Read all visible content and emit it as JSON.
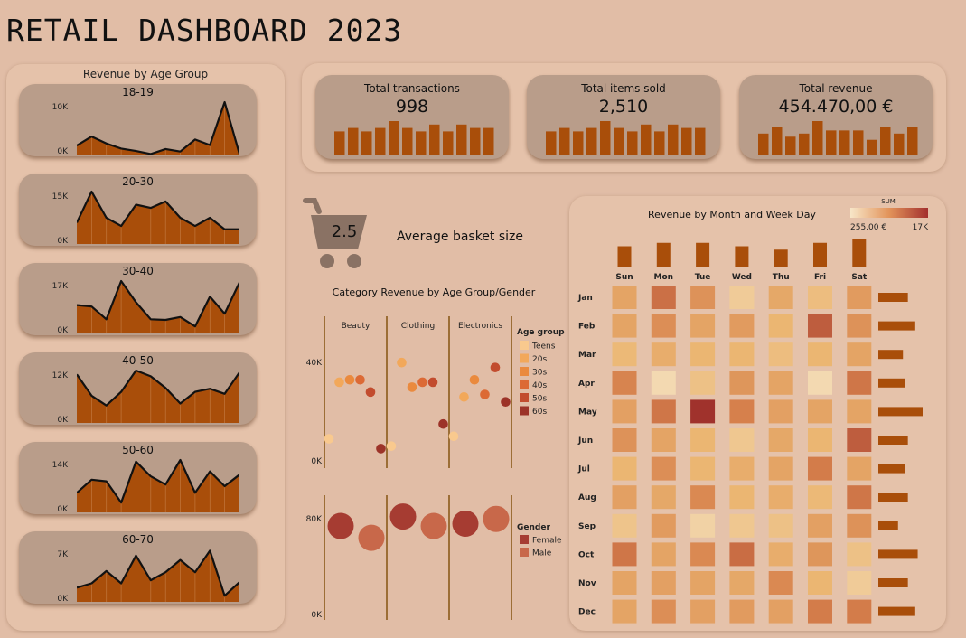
{
  "title": "RETAIL DASHBOARD 2023",
  "age_panel": {
    "title": "Revenue by Age Group",
    "groups": [
      {
        "label": "18-19",
        "ytop": "10K",
        "ybot": "0K",
        "max": 10.5,
        "values": [
          1.8,
          3.6,
          2.2,
          1.2,
          0.7,
          0.1,
          1.1,
          0.6,
          3.0,
          1.9,
          10.5,
          0.1
        ]
      },
      {
        "label": "20-30",
        "ytop": "15K",
        "ybot": "0K",
        "max": 16,
        "values": [
          6.5,
          16.0,
          8.0,
          5.5,
          12.0,
          11.0,
          13.0,
          8.0,
          5.5,
          8.0,
          4.5,
          4.5
        ]
      },
      {
        "label": "30-40",
        "ytop": "17K",
        "ybot": "0K",
        "max": 18.5,
        "values": [
          10.0,
          9.5,
          5.0,
          18.5,
          11.0,
          5.0,
          4.8,
          5.8,
          2.5,
          13.0,
          7.0,
          18.0
        ]
      },
      {
        "label": "40-50",
        "ytop": "12K",
        "ybot": "0K",
        "max": 13.5,
        "values": [
          12.5,
          7.0,
          4.5,
          8.0,
          13.5,
          12.0,
          9.0,
          5.0,
          8.0,
          8.8,
          7.5,
          13.0
        ]
      },
      {
        "label": "50-60",
        "ytop": "14K",
        "ybot": "0K",
        "max": 16,
        "values": [
          6.0,
          10.0,
          9.5,
          3.0,
          15.5,
          11.0,
          8.5,
          16.0,
          6.0,
          12.5,
          8.0,
          11.5
        ]
      },
      {
        "label": "60-70",
        "ytop": "7K",
        "ybot": "0K",
        "max": 8.5,
        "values": [
          2.3,
          3.0,
          5.0,
          3.0,
          7.5,
          3.5,
          4.8,
          6.8,
          4.8,
          8.3,
          1.0,
          3.2
        ]
      }
    ]
  },
  "kpis": [
    {
      "label": "Total transactions",
      "value": "998",
      "bars": [
        7,
        8,
        7,
        8,
        10,
        8,
        7,
        9,
        7,
        9,
        8,
        8
      ]
    },
    {
      "label": "Total items sold",
      "value": "2,510",
      "bars": [
        7,
        8,
        7,
        8,
        10,
        8,
        7,
        9,
        7,
        9,
        8,
        8
      ]
    },
    {
      "label": "Total revenue",
      "value": "454.470,00 €",
      "bars": [
        7,
        9,
        6,
        7,
        11,
        8,
        8,
        8,
        5,
        9,
        7,
        9
      ]
    }
  ],
  "basket": {
    "value": "2.5",
    "label": "Average basket size",
    "icon": "shopping-cart-icon"
  },
  "category_chart": {
    "title": "Category Revenue by Age Group/Gender",
    "categories": [
      "Beauty",
      "Clothing",
      "Electronics"
    ],
    "age_legend_title": "Age group",
    "age_legend": [
      {
        "name": "Teens",
        "color": "#f9c98e"
      },
      {
        "name": "20s",
        "color": "#f2a85a"
      },
      {
        "name": "30s",
        "color": "#ea8a3e"
      },
      {
        "name": "40s",
        "color": "#dc6a35"
      },
      {
        "name": "50s",
        "color": "#c24c2e"
      },
      {
        "name": "60s",
        "color": "#9c3328"
      }
    ],
    "gender_legend_title": "Gender",
    "gender_legend": [
      {
        "name": "Female",
        "color": "#a63c32"
      },
      {
        "name": "Male",
        "color": "#c8684a"
      }
    ],
    "age_axis": {
      "top": "40K",
      "bottom": "0K",
      "max": 50
    },
    "age_points": [
      {
        "cat": 0,
        "age": 0,
        "value": 9
      },
      {
        "cat": 0,
        "age": 1,
        "value": 32
      },
      {
        "cat": 0,
        "age": 2,
        "value": 33
      },
      {
        "cat": 0,
        "age": 3,
        "value": 33
      },
      {
        "cat": 0,
        "age": 4,
        "value": 28
      },
      {
        "cat": 0,
        "age": 5,
        "value": 5
      },
      {
        "cat": 1,
        "age": 0,
        "value": 6
      },
      {
        "cat": 1,
        "age": 1,
        "value": 40
      },
      {
        "cat": 1,
        "age": 2,
        "value": 30
      },
      {
        "cat": 1,
        "age": 3,
        "value": 32
      },
      {
        "cat": 1,
        "age": 4,
        "value": 32
      },
      {
        "cat": 1,
        "age": 5,
        "value": 15
      },
      {
        "cat": 2,
        "age": 0,
        "value": 10
      },
      {
        "cat": 2,
        "age": 1,
        "value": 26
      },
      {
        "cat": 2,
        "age": 2,
        "value": 33
      },
      {
        "cat": 2,
        "age": 3,
        "value": 27
      },
      {
        "cat": 2,
        "age": 4,
        "value": 38
      },
      {
        "cat": 2,
        "age": 5,
        "value": 24
      }
    ],
    "gender_axis": {
      "top": "80K",
      "bottom": "0K",
      "max": 100
    },
    "gender_points": [
      {
        "cat": 0,
        "gender": 0,
        "value": 74
      },
      {
        "cat": 0,
        "gender": 1,
        "value": 64
      },
      {
        "cat": 1,
        "gender": 0,
        "value": 82
      },
      {
        "cat": 1,
        "gender": 1,
        "value": 74
      },
      {
        "cat": 2,
        "gender": 0,
        "value": 76
      },
      {
        "cat": 2,
        "gender": 1,
        "value": 80
      }
    ]
  },
  "heatmap": {
    "title": "Revenue by Month and Week Day",
    "legend_title": "SUM",
    "legend_min": "255,00 €",
    "legend_max": "17K",
    "days": [
      "Sun",
      "Mon",
      "Tue",
      "Wed",
      "Thu",
      "Fri",
      "Sat"
    ],
    "day_totals": [
      6,
      7,
      7,
      6,
      5,
      7,
      8
    ],
    "months": [
      "Jan",
      "Feb",
      "Mar",
      "Apr",
      "May",
      "Jun",
      "Jul",
      "Aug",
      "Sep",
      "Oct",
      "Nov",
      "Dec"
    ],
    "month_totals": [
      6,
      7.5,
      5,
      5.5,
      9,
      6,
      5.5,
      6,
      4,
      8,
      6,
      7.5
    ],
    "values": [
      [
        0.4,
        0.68,
        0.5,
        0.15,
        0.38,
        0.25,
        0.45
      ],
      [
        0.4,
        0.52,
        0.4,
        0.45,
        0.3,
        0.78,
        0.5
      ],
      [
        0.28,
        0.35,
        0.3,
        0.3,
        0.25,
        0.3,
        0.4
      ],
      [
        0.58,
        0.05,
        0.22,
        0.48,
        0.4,
        0.05,
        0.65
      ],
      [
        0.42,
        0.65,
        1.0,
        0.6,
        0.42,
        0.4,
        0.4
      ],
      [
        0.5,
        0.4,
        0.3,
        0.18,
        0.38,
        0.3,
        0.78
      ],
      [
        0.3,
        0.52,
        0.3,
        0.35,
        0.4,
        0.62,
        0.4
      ],
      [
        0.42,
        0.38,
        0.55,
        0.3,
        0.35,
        0.28,
        0.65
      ],
      [
        0.2,
        0.45,
        0.1,
        0.18,
        0.22,
        0.42,
        0.5
      ],
      [
        0.65,
        0.4,
        0.55,
        0.7,
        0.35,
        0.48,
        0.22
      ],
      [
        0.4,
        0.42,
        0.4,
        0.38,
        0.55,
        0.3,
        0.15
      ],
      [
        0.4,
        0.52,
        0.42,
        0.45,
        0.42,
        0.62,
        0.62
      ]
    ]
  }
}
